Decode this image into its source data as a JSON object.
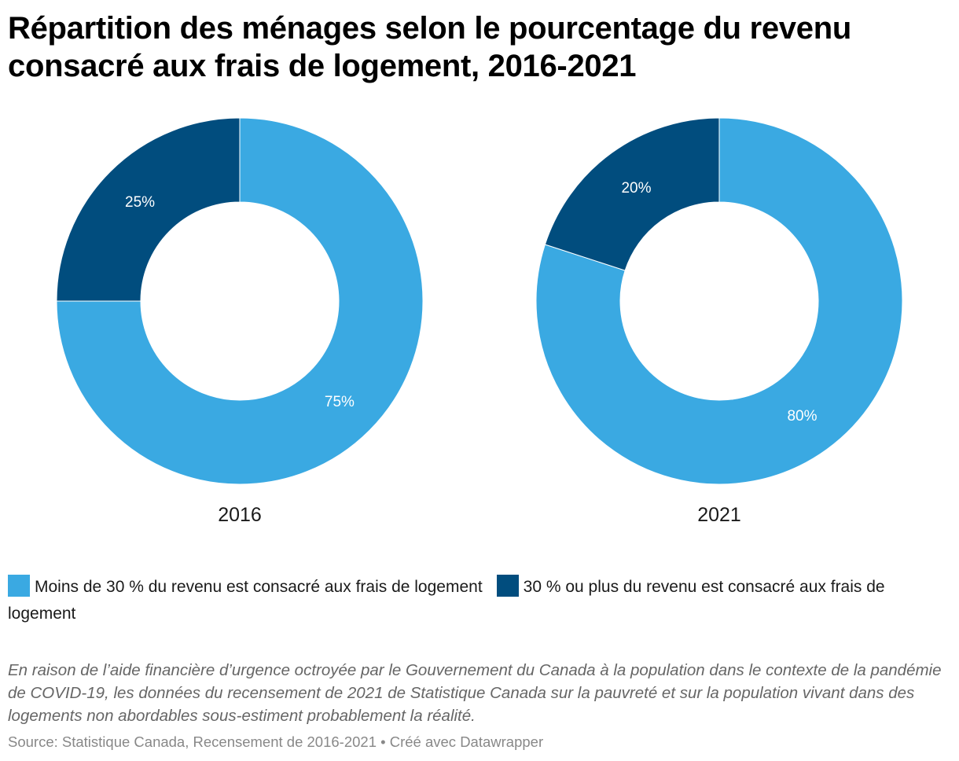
{
  "title": "Répartition des ménages selon le pourcentage du revenu consacré aux frais de logement, 2016-2021",
  "colors": {
    "light_blue": "#3aa9e2",
    "dark_blue": "#014d7e"
  },
  "legend": [
    {
      "label": "Moins de 30 % du revenu est consacré aux frais de logement",
      "color": "#3aa9e2"
    },
    {
      "label": "30 % ou plus du revenu est consacré aux frais de logement",
      "color": "#014d7e"
    }
  ],
  "note": "En raison de l’aide financière d’urgence octroyée par le Gouvernement du Canada à la population dans le contexte de la pandémie de COVID-19, les données du recensement de 2021 de Statistique Canada sur la pauvreté et sur la population vivant dans des logements non abordables sous-estiment probablement la réalité.",
  "source": "Source: Statistique Canada, Recensement de 2016-2021 • Créé avec Datawrapper",
  "chart_data": [
    {
      "type": "pie",
      "variant": "donut",
      "label": "2016",
      "categories": [
        "Moins de 30 % du revenu est consacré aux frais de logement",
        "30 % ou plus du revenu est consacré aux frais de logement"
      ],
      "values": [
        75,
        25
      ],
      "value_labels": [
        "75%",
        "25%"
      ],
      "colors": [
        "#3aa9e2",
        "#014d7e"
      ]
    },
    {
      "type": "pie",
      "variant": "donut",
      "label": "2021",
      "categories": [
        "Moins de 30 % du revenu est consacré aux frais de logement",
        "30 % ou plus du revenu est consacré aux frais de logement"
      ],
      "values": [
        80,
        20
      ],
      "value_labels": [
        "80%",
        "20%"
      ],
      "colors": [
        "#3aa9e2",
        "#014d7e"
      ]
    }
  ]
}
